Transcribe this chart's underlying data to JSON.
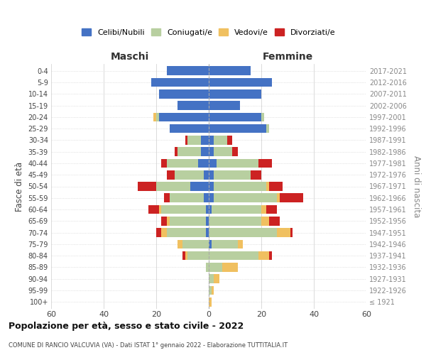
{
  "age_groups": [
    "100+",
    "95-99",
    "90-94",
    "85-89",
    "80-84",
    "75-79",
    "70-74",
    "65-69",
    "60-64",
    "55-59",
    "50-54",
    "45-49",
    "40-44",
    "35-39",
    "30-34",
    "25-29",
    "20-24",
    "15-19",
    "10-14",
    "5-9",
    "0-4"
  ],
  "birth_years": [
    "≤ 1921",
    "1922-1926",
    "1927-1931",
    "1932-1936",
    "1937-1941",
    "1942-1946",
    "1947-1951",
    "1952-1956",
    "1957-1961",
    "1962-1966",
    "1967-1971",
    "1972-1976",
    "1977-1981",
    "1982-1986",
    "1987-1991",
    "1992-1996",
    "1997-2001",
    "2002-2006",
    "2007-2011",
    "2012-2016",
    "2017-2021"
  ],
  "colors": {
    "celibi": "#4472c4",
    "coniugati": "#b8cfa0",
    "vedovi": "#f0c060",
    "divorziati": "#cc2222"
  },
  "male": {
    "celibi": [
      0,
      0,
      0,
      0,
      0,
      0,
      1,
      1,
      1,
      2,
      7,
      2,
      4,
      3,
      3,
      15,
      19,
      12,
      19,
      22,
      16
    ],
    "coniugati": [
      0,
      0,
      0,
      1,
      8,
      10,
      15,
      14,
      17,
      13,
      13,
      11,
      12,
      9,
      5,
      0,
      1,
      0,
      0,
      0,
      0
    ],
    "vedovi": [
      0,
      0,
      0,
      0,
      1,
      2,
      2,
      1,
      1,
      0,
      0,
      0,
      0,
      0,
      0,
      0,
      1,
      0,
      0,
      0,
      0
    ],
    "divorziati": [
      0,
      0,
      0,
      0,
      1,
      0,
      2,
      2,
      4,
      2,
      7,
      3,
      2,
      1,
      1,
      0,
      0,
      0,
      0,
      0,
      0
    ]
  },
  "female": {
    "nubili": [
      0,
      0,
      0,
      0,
      0,
      1,
      0,
      0,
      1,
      2,
      2,
      2,
      3,
      2,
      2,
      22,
      20,
      12,
      20,
      24,
      16
    ],
    "coniugate": [
      0,
      1,
      2,
      5,
      19,
      10,
      26,
      20,
      19,
      24,
      20,
      14,
      16,
      7,
      5,
      1,
      1,
      0,
      0,
      0,
      0
    ],
    "vedove": [
      1,
      1,
      2,
      6,
      4,
      2,
      5,
      3,
      2,
      1,
      1,
      0,
      0,
      0,
      0,
      0,
      0,
      0,
      0,
      0,
      0
    ],
    "divorziate": [
      0,
      0,
      0,
      0,
      1,
      0,
      1,
      4,
      4,
      9,
      5,
      4,
      5,
      2,
      2,
      0,
      0,
      0,
      0,
      0,
      0
    ]
  },
  "xlim": 60,
  "title": "Popolazione per età, sesso e stato civile - 2022",
  "subtitle": "COMUNE DI RANCIO VALCUVIA (VA) - Dati ISTAT 1° gennaio 2022 - Elaborazione TUTTITALIA.IT",
  "ylabel_left": "Fasce di età",
  "ylabel_right": "Anni di nascita",
  "xlabel_left": "Maschi",
  "xlabel_right": "Femmine",
  "legend_labels": [
    "Celibi/Nubili",
    "Coniugati/e",
    "Vedovi/e",
    "Divorziati/e"
  ],
  "grid_color": "#cccccc",
  "background_color": "#ffffff"
}
